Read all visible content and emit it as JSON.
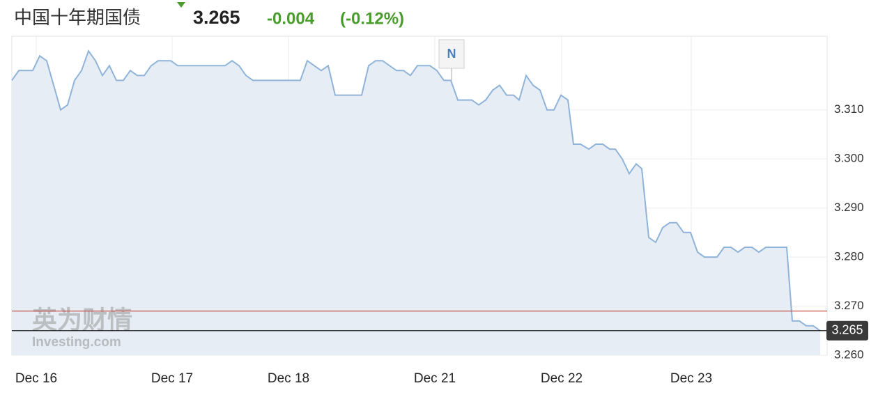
{
  "chart_data": {
    "type": "area",
    "title": "中国十年期国债",
    "price": 3.265,
    "change": -0.004,
    "change_pct": {
      "value": -0.12,
      "label": "(-0.12%)"
    },
    "prev_close": 3.269,
    "news_marker": "N",
    "watermark": [
      "英为财情",
      "Investing.com"
    ],
    "line_color": "#8fb3d9",
    "fill_color": "#e6edf5",
    "prev_close_color": "#c0392b",
    "price_color": "#222222",
    "change_color": "#4a9c2d",
    "grid": true,
    "x": [
      0,
      1,
      3,
      4,
      5,
      7,
      8,
      9,
      10,
      11,
      12,
      13,
      14,
      15,
      16,
      17,
      18,
      19,
      20,
      21,
      22.8,
      23.8,
      30.6,
      31.6,
      32.6,
      33.6,
      34.6,
      41.4,
      42.4,
      43.4,
      44.4,
      45.4,
      46.4,
      50.2,
      51.2,
      52.2,
      53.2,
      55.2,
      56.2,
      57.2,
      58.2,
      60,
      61,
      62,
      63,
      64,
      66,
      67,
      68,
      69,
      70,
      71,
      72,
      72.8,
      73.8,
      74.8,
      75.8,
      76.8,
      77.8,
      78.8,
      79.8,
      80.6,
      81.6,
      82.8,
      83.8,
      84.8,
      85.8,
      86.6,
      87.6,
      88.6,
      89.6,
      90.4,
      91.4,
      92.4,
      93.4,
      94.4,
      95.4,
      96.4,
      97.4,
      98.4,
      99.4,
      101.2,
      102.2,
      103.2,
      104.2,
      105.2,
      106.2,
      107.2,
      108.2,
      111.2,
      112,
      113,
      114,
      115,
      116
    ],
    "values": [
      3.316,
      3.318,
      3.318,
      3.321,
      3.32,
      3.31,
      3.311,
      3.316,
      3.318,
      3.322,
      3.32,
      3.317,
      3.319,
      3.316,
      3.316,
      3.318,
      3.317,
      3.317,
      3.319,
      3.32,
      3.32,
      3.319,
      3.319,
      3.32,
      3.319,
      3.317,
      3.316,
      3.316,
      3.32,
      3.319,
      3.318,
      3.319,
      3.313,
      3.313,
      3.319,
      3.32,
      3.32,
      3.318,
      3.318,
      3.317,
      3.319,
      3.319,
      3.318,
      3.316,
      3.316,
      3.312,
      3.312,
      3.311,
      3.312,
      3.314,
      3.315,
      3.313,
      3.313,
      3.312,
      3.317,
      3.315,
      3.314,
      3.31,
      3.31,
      3.313,
      3.312,
      3.303,
      3.303,
      3.302,
      3.303,
      3.303,
      3.302,
      3.302,
      3.3,
      3.297,
      3.299,
      3.298,
      3.284,
      3.283,
      3.286,
      3.287,
      3.287,
      3.285,
      3.285,
      3.281,
      3.28,
      3.28,
      3.282,
      3.282,
      3.281,
      3.282,
      3.282,
      3.281,
      3.282,
      3.282,
      3.267,
      3.267,
      3.266,
      3.266,
      3.265
    ],
    "xlim": [
      0,
      117
    ],
    "xticks": [
      {
        "value": 3.5,
        "label": "Dec 16"
      },
      {
        "value": 23,
        "label": "Dec 17"
      },
      {
        "value": 39.7,
        "label": "Dec 18"
      },
      {
        "value": 60.7,
        "label": "Dec 21"
      },
      {
        "value": 78.9,
        "label": "Dec 22"
      },
      {
        "value": 97.5,
        "label": "Dec 23"
      }
    ],
    "ylim": [
      3.26,
      3.325
    ],
    "yticks": [
      {
        "value": 3.26,
        "label": "3.260"
      },
      {
        "value": 3.27,
        "label": "3.270"
      },
      {
        "value": 3.28,
        "label": "3.280"
      },
      {
        "value": 3.29,
        "label": "3.290"
      },
      {
        "value": 3.3,
        "label": "3.300"
      },
      {
        "value": 3.31,
        "label": "3.310"
      }
    ]
  }
}
